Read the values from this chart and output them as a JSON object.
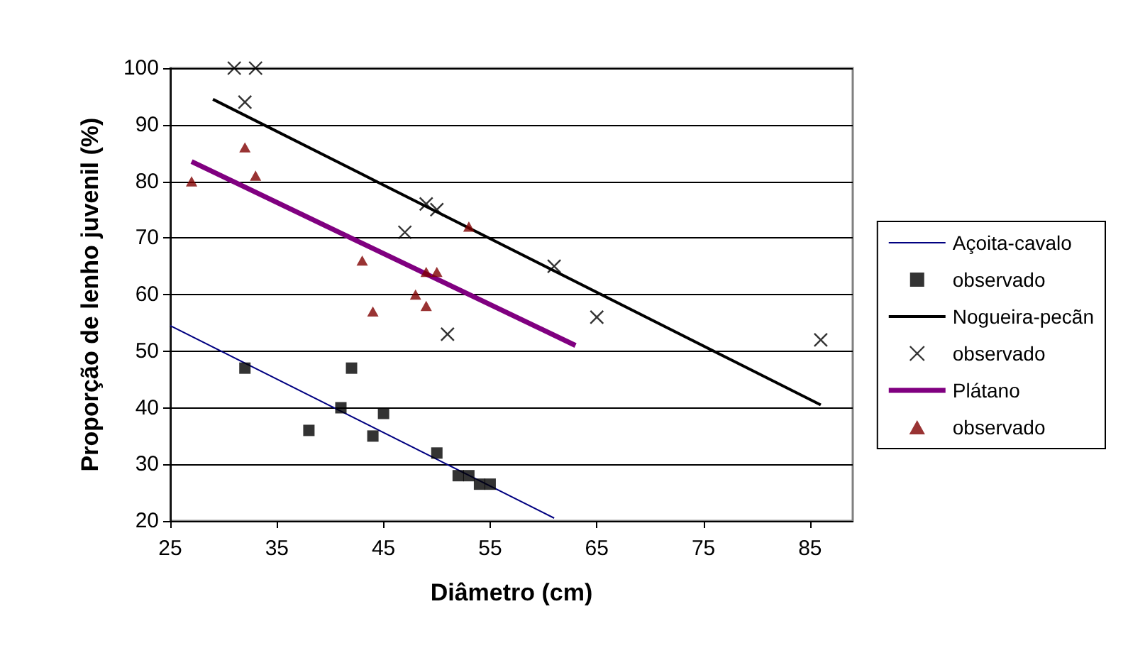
{
  "chart_data": {
    "type": "scatter",
    "xlabel": "Diâmetro (cm)",
    "ylabel": "Proporção de lenho juvenil (%)",
    "xlim": [
      25,
      89
    ],
    "xticks": [
      25,
      35,
      45,
      55,
      65,
      75,
      85
    ],
    "ylim": [
      20,
      100
    ],
    "yticks": [
      20,
      30,
      40,
      50,
      60,
      70,
      80,
      90,
      100
    ],
    "grid": "y",
    "legend": "right",
    "series": [
      {
        "name": "Açoita-cavalo",
        "type": "line",
        "color": "#000080",
        "marker": "none",
        "x": [
          25,
          61
        ],
        "values": [
          54.5,
          20.5
        ]
      },
      {
        "name": "observado",
        "color": "#000000",
        "marker": "square",
        "x": [
          32,
          38,
          41,
          42,
          44,
          45,
          50,
          52,
          53,
          54,
          55
        ],
        "values": [
          47,
          36,
          40,
          47,
          35,
          39,
          32,
          28,
          28,
          26.5,
          26.5
        ]
      },
      {
        "name": "Nogueira-pecãn",
        "type": "line",
        "color": "#000000",
        "marker": "none",
        "x": [
          29,
          86
        ],
        "values": [
          94.5,
          40.5
        ]
      },
      {
        "name": "observado",
        "color": "#000000",
        "marker": "cross",
        "x": [
          31,
          33,
          32,
          47,
          49,
          50,
          51,
          61,
          65,
          86
        ],
        "values": [
          100,
          100,
          94,
          71,
          76,
          75,
          53,
          65,
          56,
          52
        ]
      },
      {
        "name": "Plátano",
        "type": "line",
        "color": "#800080",
        "marker": "none",
        "x": [
          27,
          63
        ],
        "values": [
          83.5,
          51
        ]
      },
      {
        "name": "observado",
        "color": "#800000",
        "marker": "triangle",
        "x": [
          27,
          32,
          33,
          43,
          44,
          48,
          49,
          49,
          50,
          53
        ],
        "values": [
          80,
          86,
          81,
          66,
          57,
          60,
          58,
          64,
          64,
          72
        ]
      }
    ]
  }
}
